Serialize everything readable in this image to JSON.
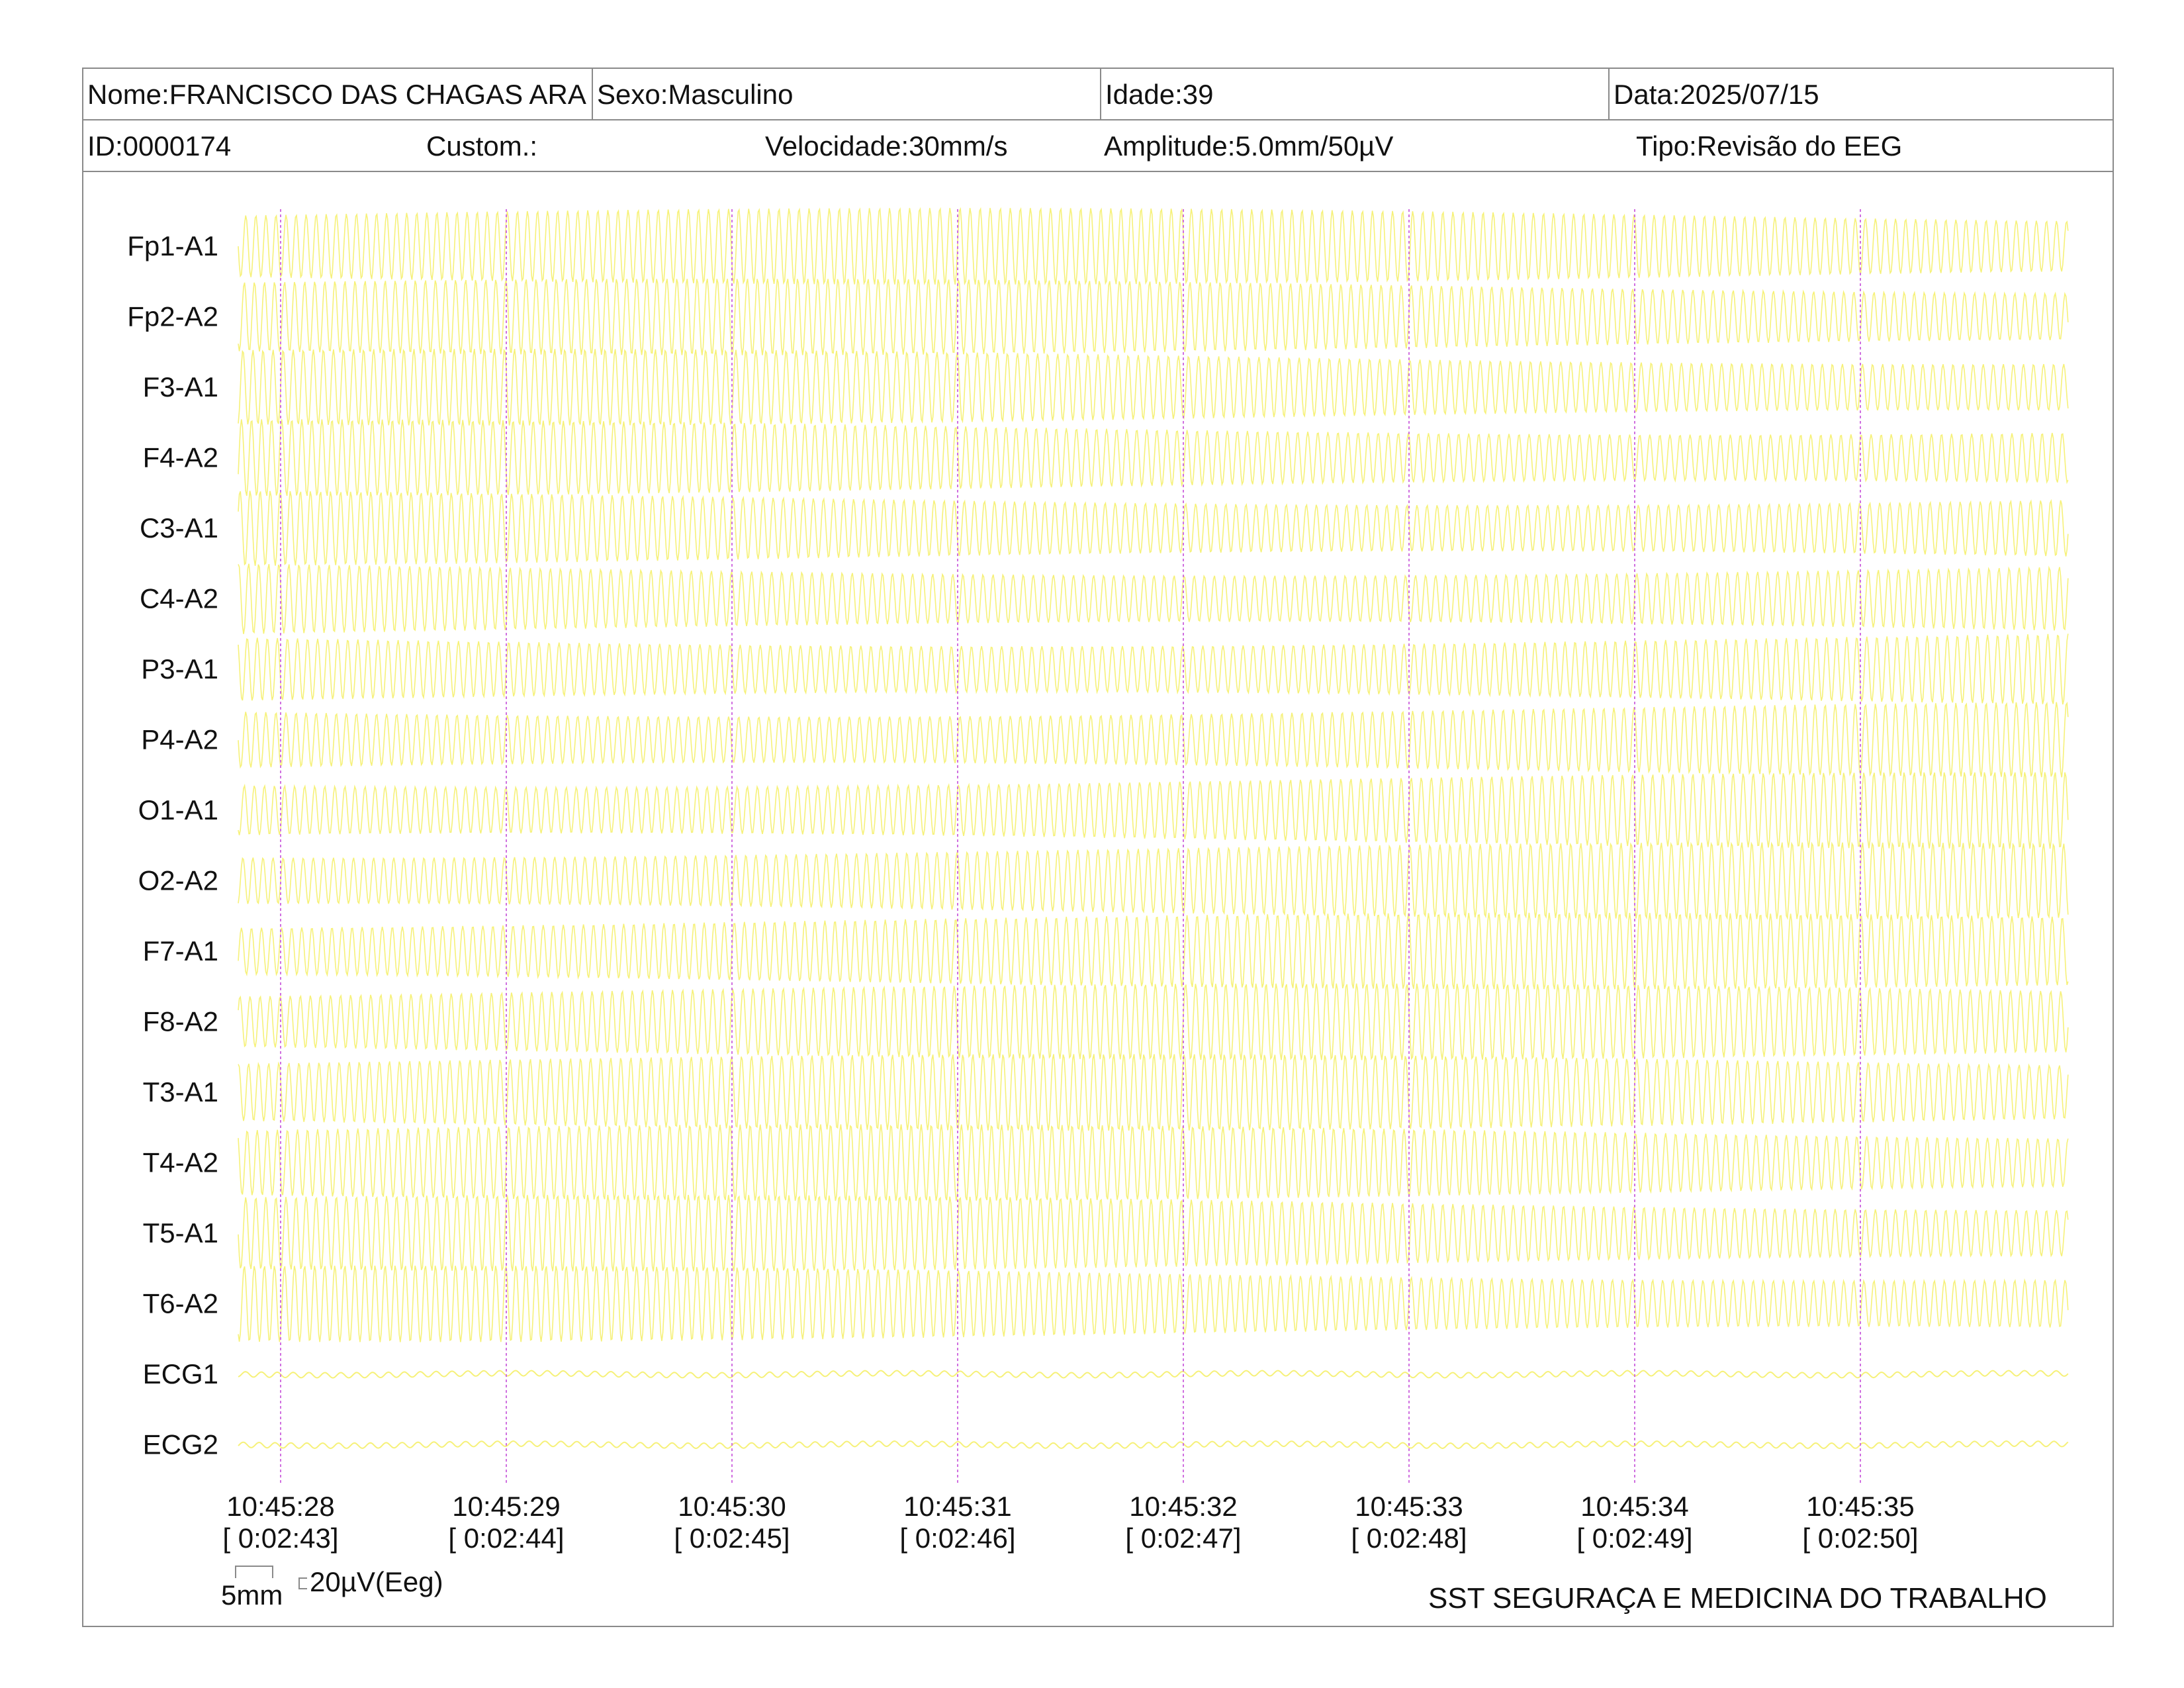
{
  "header": {
    "nome": "Nome:FRANCISCO DAS CHAGAS ARA",
    "sexo": "Sexo:Masculino",
    "idade": "Idade:39",
    "data": "Data:2025/07/15",
    "id": "ID:0000174",
    "custom": "Custom.:",
    "velocidade": "Velocidade:30mm/s",
    "amplitude": "Amplitude:5.0mm/50µV",
    "tipo": "Tipo:Revisão do EEG"
  },
  "leads": [
    "Fp1-A1",
    "Fp2-A2",
    "F3-A1",
    "F4-A2",
    "C3-A1",
    "C4-A2",
    "P3-A1",
    "P4-A2",
    "O1-A1",
    "O2-A2",
    "F7-A1",
    "F8-A2",
    "T3-A1",
    "T4-A2",
    "T5-A1",
    "T6-A2",
    "ECG1",
    "ECG2"
  ],
  "time_marks": [
    {
      "clock": "10:45:28",
      "elapsed": "[ 0:02:43]"
    },
    {
      "clock": "10:45:29",
      "elapsed": "[ 0:02:44]"
    },
    {
      "clock": "10:45:30",
      "elapsed": "[ 0:02:45]"
    },
    {
      "clock": "10:45:31",
      "elapsed": "[ 0:02:46]"
    },
    {
      "clock": "10:45:32",
      "elapsed": "[ 0:02:47]"
    },
    {
      "clock": "10:45:33",
      "elapsed": "[ 0:02:48]"
    },
    {
      "clock": "10:45:34",
      "elapsed": "[ 0:02:49]"
    },
    {
      "clock": "10:45:35",
      "elapsed": "[ 0:02:50]"
    }
  ],
  "scale": {
    "time_label": "5mm",
    "amp_label": "20µV(Eeg)"
  },
  "footer": "SST SEGURAÇA E MEDICINA DO TRABALHO",
  "colors": {
    "trace": "#f5f06a",
    "marker": "#d070e0",
    "border": "#8a8a8a"
  }
}
